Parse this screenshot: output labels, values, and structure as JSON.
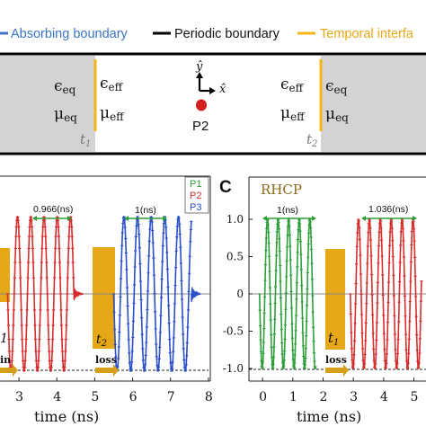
{
  "legend": {
    "absorbing": "Absorbing boundary",
    "periodic": "Periodic boundary",
    "temporal": "Temporal interfa",
    "colors": {
      "absorbing": "#3a74c4",
      "periodic": "#000000",
      "temporal": "#f2b51a"
    }
  },
  "schematic": {
    "left_eq_eps": "ϵ",
    "left_eq_eps_sub": "eq",
    "left_eff_eps": "ϵ",
    "left_eff_eps_sub": "eff",
    "left_eq_mu": "μ",
    "left_eq_mu_sub": "eq",
    "left_eff_mu": "μ",
    "left_eff_mu_sub": "eff",
    "right_eff_eps": "ϵ",
    "right_eff_eps_sub": "eff",
    "right_eq_eps": "ϵ",
    "right_eq_eps_sub": "eq",
    "right_eff_mu": "μ",
    "right_eff_mu_sub": "eff",
    "right_eq_mu": "μ",
    "right_eq_mu_sub": "eq",
    "t1": "t",
    "t1_sub": "1",
    "t2": "t",
    "t2_sub": "2",
    "y_axis": "ŷ",
    "x_axis": "x̂",
    "probe": "P2"
  },
  "panel_b": {
    "legend": [
      "P1",
      "P2",
      "P3"
    ],
    "legend_colors": [
      "#2e9e3a",
      "#d62d2d",
      "#2b4fc7"
    ],
    "period_left": "0.966(ns)",
    "period_right": "1(ns)",
    "t_label": "t",
    "t_label_sub": "2",
    "t_label_left": "1",
    "loss_label": "loss",
    "gain_label": "in",
    "xlabel": "time (ns)"
  },
  "panel_c": {
    "letter": "C",
    "title": "RHCP",
    "period_left": "1(ns)",
    "period_right": "1.036(ns)",
    "t_label": "t",
    "t_label_sub": "1",
    "loss_label": "loss",
    "xlabel": "time (ns)"
  },
  "chart_data": [
    {
      "type": "line",
      "xlabel": "time (ns)",
      "x_ticks": [
        "3",
        "4",
        "5",
        "6",
        "7",
        "8"
      ],
      "xlim": [
        2.5,
        8.05
      ],
      "series": [
        {
          "name": "P2",
          "color": "#d62d2d",
          "description_values": {
            "t_start": 2.7,
            "t_end": 4.45,
            "period_ns": 0.35,
            "amplitude": 1.0
          }
        },
        {
          "name": "P3",
          "color": "#2b4fc7",
          "description_values": {
            "t_start": 5.5,
            "t_end": 7.55,
            "period_ns": 0.36,
            "amplitude": 1.0
          }
        }
      ]
    },
    {
      "type": "line",
      "xlabel": "time (ns)",
      "x_ticks": [
        "0",
        "1",
        "2",
        "3",
        "4",
        "5"
      ],
      "y_ticks": [
        "1.0",
        "0.5",
        "0",
        "-0.5",
        "-1.0"
      ],
      "xlim": [
        -0.45,
        5.4
      ],
      "ylim": [
        -1.1,
        1.15
      ],
      "series": [
        {
          "name": "green",
          "color": "#2e9e3a",
          "description_values": {
            "t_start": -0.1,
            "t_end": 1.75,
            "period_ns": 0.35,
            "amplitude": 1.0
          }
        },
        {
          "name": "red",
          "color": "#d62d2d",
          "description_values": {
            "t_start": 2.9,
            "t_end": 5.25,
            "period_ns": 0.36,
            "amplitude": 1.0
          }
        }
      ]
    }
  ]
}
